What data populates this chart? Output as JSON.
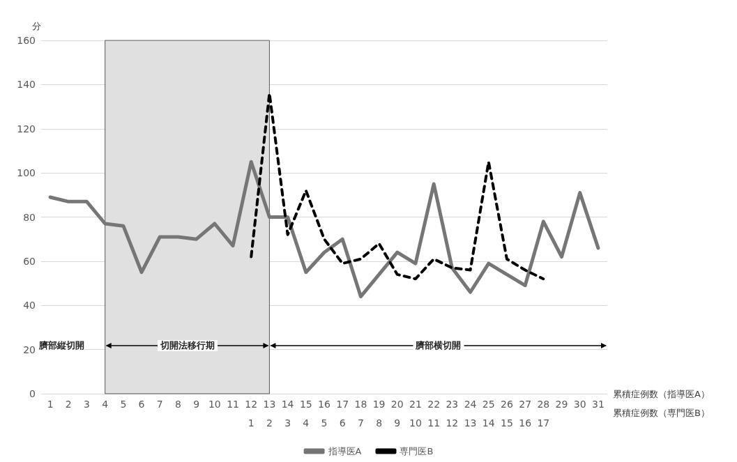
{
  "chart_data": {
    "type": "line",
    "ylabel": "分",
    "xlabel": "累積症例数（指導医A）",
    "x2label": "累積症例数（専門医B）",
    "xlim": [
      0.5,
      31.5
    ],
    "xticks": [
      1,
      2,
      3,
      4,
      5,
      6,
      7,
      8,
      9,
      10,
      11,
      12,
      13,
      14,
      15,
      16,
      17,
      18,
      19,
      20,
      21,
      22,
      23,
      24,
      25,
      26,
      27,
      28,
      29,
      30,
      31
    ],
    "x2lim": [
      -10.5,
      20.5
    ],
    "x2ticks": [
      1,
      2,
      3,
      4,
      5,
      6,
      7,
      8,
      9,
      10,
      11,
      12,
      13,
      14,
      15,
      16,
      17
    ],
    "ylim": [
      0,
      160
    ],
    "yticks": [
      0,
      20,
      40,
      60,
      80,
      100,
      120,
      140,
      160
    ],
    "series": [
      {
        "name": "指導医A",
        "color": "#767676",
        "line_style": "solid",
        "x": [
          1,
          2,
          3,
          4,
          5,
          6,
          7,
          8,
          9,
          10,
          11,
          12,
          13,
          14,
          15,
          16,
          17,
          18,
          19,
          20,
          21,
          22,
          23,
          24,
          25,
          26,
          27,
          28,
          29,
          30,
          31
        ],
        "values": [
          89,
          87,
          87,
          77,
          76,
          55,
          71,
          71,
          70,
          77,
          67,
          105,
          80,
          80,
          55,
          64,
          70,
          44,
          54,
          64,
          59,
          95,
          57,
          46,
          59,
          54,
          49,
          78,
          62,
          91,
          66
        ]
      },
      {
        "name": "専門医B",
        "color": "#000000",
        "line_style": "dashed",
        "axis": "x2",
        "x": [
          1,
          2,
          3,
          4,
          5,
          6,
          7,
          8,
          9,
          10,
          11,
          12,
          13,
          14,
          15,
          16,
          17
        ],
        "values": [
          62,
          136,
          72,
          92,
          70,
          59,
          61,
          68,
          54,
          52,
          61,
          57,
          56,
          105,
          61,
          56,
          52
        ]
      }
    ],
    "bands": [
      {
        "axis": "x",
        "from": 4,
        "to": 13,
        "color": "#e0e0e0"
      }
    ],
    "annotations": [
      "臍部縦切開",
      "切開法移行期",
      "臍部横切開"
    ],
    "grid": "y",
    "legend": "bottom",
    "marker": "none"
  }
}
